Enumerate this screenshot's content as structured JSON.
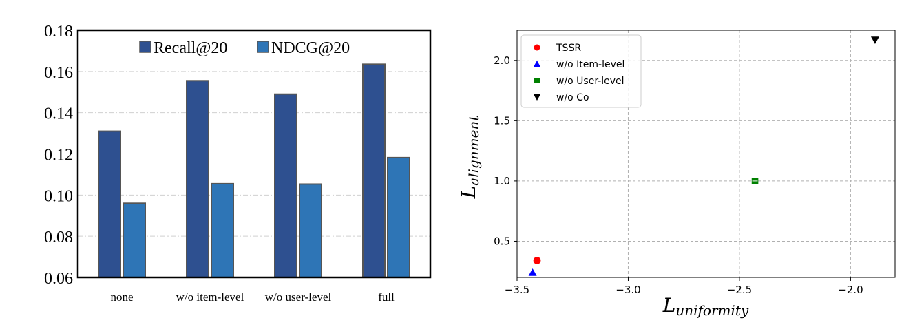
{
  "chart_data": [
    {
      "type": "bar",
      "title": "",
      "xlabel": "",
      "ylabel": "",
      "categories": [
        "none",
        "w/o item-level",
        "w/o user-level",
        "full"
      ],
      "series": [
        {
          "name": "Recall@20",
          "color": "#2e5090",
          "values": [
            0.131,
            0.1555,
            0.149,
            0.1635
          ]
        },
        {
          "name": "NDCG@20",
          "color": "#2e75b6",
          "values": [
            0.096,
            0.1055,
            0.1053,
            0.1182
          ]
        }
      ],
      "ylim": [
        0.06,
        0.18
      ],
      "yticks": [
        "0.06",
        "0.08",
        "0.10",
        "0.12",
        "0.14",
        "0.16",
        "0.18"
      ],
      "grid": true,
      "legend_position": "top-center"
    },
    {
      "type": "scatter",
      "title": "",
      "xlabel": {
        "base": "L",
        "sub": "uniformity"
      },
      "ylabel": {
        "base": "L",
        "sub": "alignment"
      },
      "xlim": [
        -3.5,
        -1.8
      ],
      "ylim": [
        0.2,
        2.25
      ],
      "xticks": [
        {
          "v": -3.5,
          "label": "−3.5"
        },
        {
          "v": -3.0,
          "label": "−3.0"
        },
        {
          "v": -2.5,
          "label": "−2.5"
        },
        {
          "v": -2.0,
          "label": "−2.0"
        }
      ],
      "yticks": [
        {
          "v": 0.5,
          "label": "0.5"
        },
        {
          "v": 1.0,
          "label": "1.0"
        },
        {
          "v": 1.5,
          "label": "1.5"
        },
        {
          "v": 2.0,
          "label": "2.0"
        }
      ],
      "grid": true,
      "legend_position": "top-left",
      "series": [
        {
          "name": "TSSR",
          "marker": "circle",
          "color": "#ff0000",
          "x": -3.41,
          "y": 0.34
        },
        {
          "name": "w/o Item-level",
          "marker": "triangle-up",
          "color": "#0000ff",
          "x": -3.43,
          "y": 0.24
        },
        {
          "name": "w/o User-level",
          "marker": "square",
          "color": "#008000",
          "x": -2.43,
          "y": 1.0
        },
        {
          "name": "w/o Co",
          "marker": "triangle-down",
          "color": "#000000",
          "x": -1.89,
          "y": 2.17
        }
      ]
    }
  ]
}
